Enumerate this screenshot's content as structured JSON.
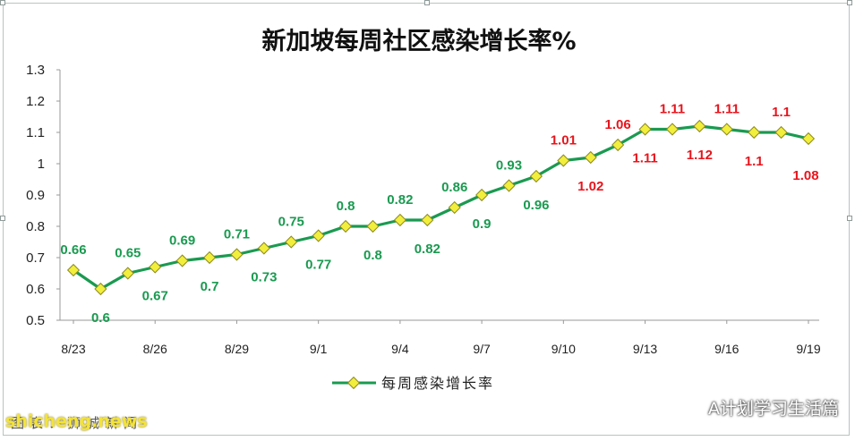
{
  "chart_data": {
    "type": "line",
    "title": "新加坡每周社区感染增长率%",
    "xlabel": "",
    "ylabel": "",
    "x": [
      "8/23",
      "8/24",
      "8/25",
      "8/26",
      "8/27",
      "8/28",
      "8/29",
      "8/30",
      "8/31",
      "9/1",
      "9/2",
      "9/3",
      "9/4",
      "9/5",
      "9/6",
      "9/7",
      "9/8",
      "9/9",
      "9/10",
      "9/11",
      "9/12",
      "9/13",
      "9/14",
      "9/15",
      "9/16",
      "9/17",
      "9/18",
      "9/19"
    ],
    "tick_labels": [
      "8/23",
      "8/26",
      "8/29",
      "9/1",
      "9/4",
      "9/7",
      "9/10",
      "9/13",
      "9/16",
      "9/19"
    ],
    "yticks": [
      "0.5",
      "0.6",
      "0.7",
      "0.8",
      "0.9",
      "1",
      "1.1",
      "1.2",
      "1.3"
    ],
    "ylim": [
      0.5,
      1.3
    ],
    "grid": false,
    "legend_position": "bottom",
    "series": [
      {
        "name": "每周感染增长率",
        "values": [
          0.66,
          0.6,
          0.65,
          0.67,
          0.69,
          0.7,
          0.71,
          0.73,
          0.75,
          0.77,
          0.8,
          0.8,
          0.82,
          0.82,
          0.86,
          0.9,
          0.93,
          0.96,
          1.01,
          1.02,
          1.06,
          1.11,
          1.11,
          1.12,
          1.11,
          1.1,
          1.1,
          1.08
        ],
        "labels": [
          "0.66",
          "0.6",
          "0.65",
          "0.67",
          "0.69",
          "0.7",
          "0.71",
          "0.73",
          "0.75",
          "0.77",
          "0.8",
          "0.8",
          "0.82",
          "0.82",
          "0.86",
          "0.9",
          "0.93",
          "0.96",
          "1.01",
          "1.02",
          "1.06",
          "1.11",
          "1.11",
          "1.12",
          "1.11",
          "1.1",
          "1.1",
          "1.08"
        ]
      }
    ],
    "colors": {
      "line": "#1a9a50",
      "marker_fill": "#f2ee3c",
      "marker_stroke": "#8c8a20",
      "label_green": "#1a9a50",
      "label_red": "#e8141c",
      "axis": "#999999"
    }
  },
  "watermarks": {
    "wechat_account": "A计划学习生活篇",
    "wechat_icon": "wechat-icon",
    "site": "shicheng.news",
    "source": "图表：狮城新闻"
  }
}
